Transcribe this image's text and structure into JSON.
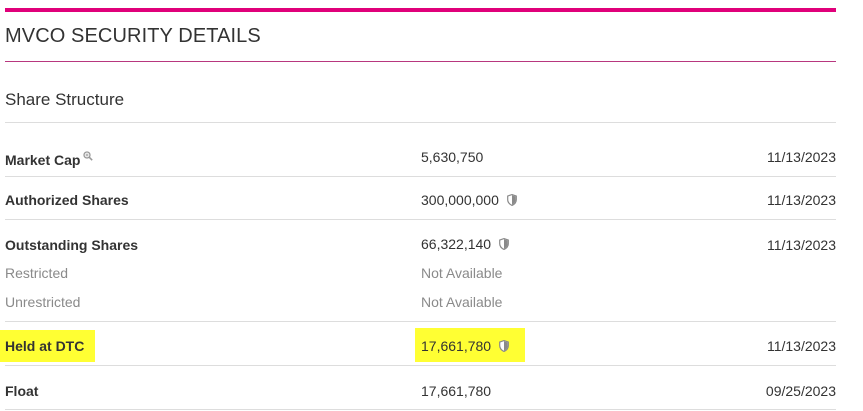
{
  "section": {
    "title": "MVCO SECURITY DETAILS",
    "accent_color": "#e0007a"
  },
  "share_structure": {
    "title": "Share Structure",
    "rows": [
      {
        "label": "Market Cap",
        "value": "5,630,750",
        "date": "11/13/2023",
        "icon": "magnifier-icon"
      },
      {
        "label": "Authorized Shares",
        "value": "300,000,000",
        "date": "11/13/2023",
        "icon": "shield-icon"
      },
      {
        "label": "Outstanding Shares",
        "value": "66,322,140",
        "date": "11/13/2023",
        "icon": "shield-icon"
      },
      {
        "label": "Restricted",
        "value": "Not Available"
      },
      {
        "label": "Unrestricted",
        "value": "Not Available"
      },
      {
        "label": "Held at DTC",
        "value": "17,661,780",
        "date": "11/13/2023",
        "icon": "shield-icon",
        "highlight": "#ffff33"
      },
      {
        "label": "Float",
        "value": "17,661,780",
        "date": "09/25/2023"
      }
    ]
  }
}
